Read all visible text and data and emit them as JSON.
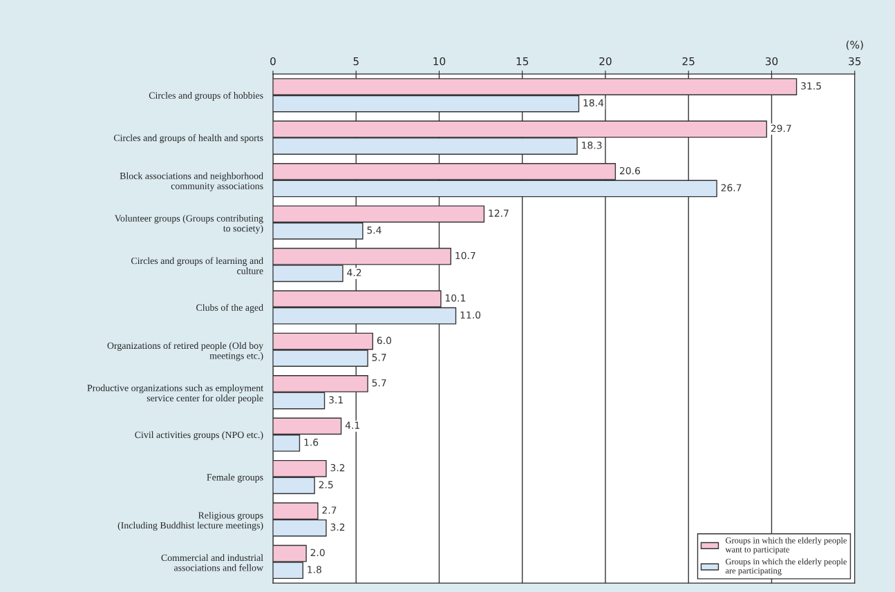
{
  "chart_data": {
    "type": "bar",
    "orientation": "horizontal",
    "xlabel": "(%)",
    "categories": [
      "Circles and groups of hobbies",
      "Circles and groups of health and sports",
      "Block associations and neighborhood\ncommunity associations",
      "Volunteer groups (Groups contributing\nto society)",
      "Circles and groups of learning and\nculture",
      "Clubs of the aged",
      "Organizations of retired people (Old boy\nmeetings etc.)",
      "Productive organizations such as employment\nservice center for older people",
      "Civil activities groups (NPO etc.)",
      "Female groups",
      "Religious groups\n(Including Buddhist lecture meetings)",
      "Commercial and industrial\nassociations and fellow"
    ],
    "series": [
      {
        "name": "Groups in which the elderly people\nwant to participate",
        "color": "#f7c4d6",
        "values": [
          31.5,
          29.7,
          20.6,
          12.7,
          10.7,
          10.1,
          6.0,
          5.7,
          4.1,
          3.2,
          2.7,
          2.0
        ],
        "value_labels": [
          "31.5",
          "29.7",
          "20.6",
          "12.7",
          "10.7",
          "10.1",
          "6.0",
          "5.7",
          "4.1",
          "3.2",
          "2.7",
          "2.0"
        ]
      },
      {
        "name": "Groups in which the elderly people\nare participating",
        "color": "#d4e6f6",
        "values": [
          18.4,
          18.3,
          26.7,
          5.4,
          4.2,
          11.0,
          5.7,
          3.1,
          1.6,
          2.5,
          3.2,
          1.8
        ],
        "value_labels": [
          "18.4",
          "18.3",
          "26.7",
          "5.4",
          "4.2",
          "11.0",
          "5.7",
          "3.1",
          "1.6",
          "2.5",
          "3.2",
          "1.8"
        ]
      }
    ],
    "xlim": [
      0,
      35
    ],
    "xticks": [
      0,
      5,
      10,
      15,
      20,
      25,
      30,
      35
    ],
    "grid": "x",
    "legend": "bottom right"
  }
}
